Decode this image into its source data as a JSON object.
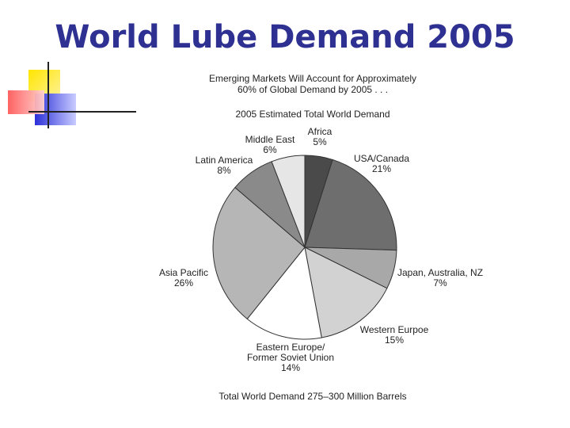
{
  "slide": {
    "title": "World Lube Demand 2005"
  },
  "figure": {
    "intro_line1": "Emerging Markets Will Account for Approximately",
    "intro_line2": "60% of Global Demand by 2005 . . .",
    "chart_title": "2005 Estimated Total World Demand",
    "footer": "Total World Demand 275–300 Million Barrels"
  },
  "chart_data": {
    "type": "pie",
    "title": "2005 Estimated Total World Demand",
    "start_angle_deg": 0,
    "direction": "clockwise",
    "slices": [
      {
        "label": "Africa",
        "value_label": "5%",
        "value": 5,
        "color": "#4a4a4a"
      },
      {
        "label": "USA/Canada",
        "value_label": "21%",
        "value": 21,
        "color": "#6e6e6e"
      },
      {
        "label": "Japan, Australia, NZ",
        "value_label": "7%",
        "value": 7,
        "color": "#a8a8a8"
      },
      {
        "label": "Western Eurpoe",
        "value_label": "15%",
        "value": 15,
        "color": "#d2d2d2"
      },
      {
        "label": "Eastern Europe/\nFormer Soviet Union",
        "value_label": "14%",
        "value": 14,
        "color": "#ffffff"
      },
      {
        "label": "Asia Pacific",
        "value_label": "26%",
        "value": 26,
        "color": "#b6b6b6"
      },
      {
        "label": "Latin America",
        "value_label": "8%",
        "value": 8,
        "color": "#8a8a8a"
      },
      {
        "label": "Middle East",
        "value_label": "6%",
        "value": 6,
        "color": "#e6e6e6"
      }
    ]
  },
  "colors": {
    "title": "#2e3192",
    "deco_yellow": "#ffd700",
    "deco_blue": "#3a3fd6",
    "deco_red": "#ff3b3b"
  }
}
